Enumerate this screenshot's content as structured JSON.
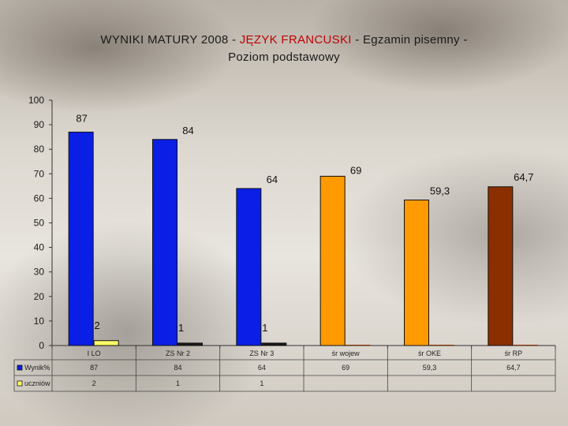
{
  "title": {
    "part1": "WYNIKI MATURY 2008  - ",
    "part2": "JĘZYK FRANCUSKI",
    "part3": " - Egzamin pisemny -",
    "line2": "Poziom podstawowy"
  },
  "colors": {
    "blue": "#0a1ee6",
    "orange": "#ff9a00",
    "brown": "#8b2f00",
    "yellow": "#ffff66",
    "dark": "#1a1a1a"
  },
  "chart_data": {
    "type": "bar",
    "title": "WYNIKI MATURY 2008  - JĘZYK FRANCUSKI - Egzamin pisemny - Poziom podstawowy",
    "categories": [
      "I LO",
      "ZS Nr 2",
      "ZS Nr 3",
      "śr  wojew",
      "śr  OKE",
      "śr  RP"
    ],
    "series": [
      {
        "name": "Wynik%",
        "values": [
          87,
          84,
          64,
          69,
          59.3,
          64.7
        ],
        "labels": [
          "87",
          "84",
          "64",
          "69",
          "59,3",
          "64,7"
        ],
        "table": [
          "87",
          "84",
          "64",
          "69",
          "59,3",
          "64,7"
        ]
      },
      {
        "name": "uczniów",
        "values": [
          2,
          1,
          1,
          null,
          null,
          null
        ],
        "labels": [
          "2",
          "1",
          "1",
          "",
          "",
          ""
        ],
        "table": [
          "2",
          "1",
          "1",
          "",
          "",
          ""
        ]
      }
    ],
    "ylim": [
      0,
      100
    ],
    "yticks": [
      0,
      10,
      20,
      30,
      40,
      50,
      60,
      70,
      80,
      90,
      100
    ],
    "grid": false,
    "legend": "data-table"
  }
}
